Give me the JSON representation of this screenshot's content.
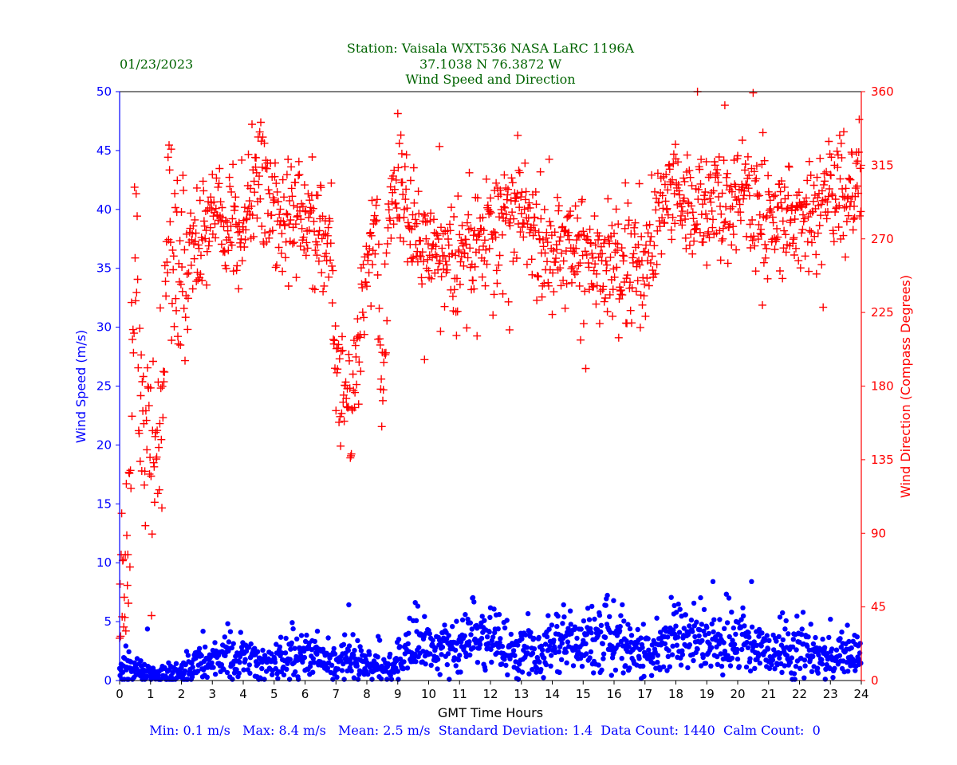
{
  "chart_data": {
    "type": "scatter",
    "title_lines": [
      "Station:  Vaisala WXT536  NASA LaRC 1196A",
      "37.1038 N 76.3872 W",
      "Wind Speed and Direction"
    ],
    "date": "01/23/2023",
    "xlabel": "GMT Time Hours",
    "ylabel_left": "Wind Speed (m/s)",
    "ylabel_right": "Wind Direction (Compass Degrees)",
    "xlim": [
      0,
      24
    ],
    "ylim_left": [
      0,
      50
    ],
    "ylim_right": [
      0,
      360
    ],
    "x_ticks": [
      "0",
      "1",
      "2",
      "3",
      "4",
      "5",
      "6",
      "7",
      "8",
      "9",
      "10",
      "11",
      "12",
      "13",
      "14",
      "15",
      "16",
      "17",
      "18",
      "19",
      "20",
      "21",
      "22",
      "23",
      "24"
    ],
    "y_left_ticks": [
      "0",
      "5",
      "10",
      "15",
      "20",
      "25",
      "30",
      "35",
      "40",
      "45",
      "50"
    ],
    "y_right_ticks": [
      "0",
      "45",
      "90",
      "135",
      "180",
      "225",
      "270",
      "315",
      "360"
    ],
    "stats": "Min: 0.1 m/s   Max: 8.4 m/s   Mean: 2.5 m/s  Standard Deviation: 1.4  Data Count: 1440  Calm Count:  0",
    "sample_interval_minutes": 1,
    "series": [
      {
        "name": "Wind Speed (m/s)",
        "axis": "left",
        "marker": "circle",
        "color": "#0000ff",
        "hourly_profile": [
          [
            0,
            1.0
          ],
          [
            0.5,
            0.9
          ],
          [
            1,
            0.5
          ],
          [
            1.5,
            0.5
          ],
          [
            2,
            0.5
          ],
          [
            2.5,
            1.4
          ],
          [
            3,
            1.8
          ],
          [
            3.5,
            2.0
          ],
          [
            4,
            2.4
          ],
          [
            4.5,
            1.2
          ],
          [
            5,
            1.4
          ],
          [
            5.5,
            2.2
          ],
          [
            6,
            2.0
          ],
          [
            6.5,
            1.8
          ],
          [
            7,
            1.6
          ],
          [
            7.5,
            2.2
          ],
          [
            8,
            1.5
          ],
          [
            8.5,
            0.8
          ],
          [
            9,
            1.4
          ],
          [
            9.5,
            3.2
          ],
          [
            10,
            3.0
          ],
          [
            10.5,
            2.8
          ],
          [
            11,
            3.0
          ],
          [
            11.5,
            3.8
          ],
          [
            12,
            3.6
          ],
          [
            12.5,
            2.8
          ],
          [
            13,
            2.8
          ],
          [
            13.5,
            2.6
          ],
          [
            14,
            2.8
          ],
          [
            14.5,
            3.2
          ],
          [
            15,
            3.2
          ],
          [
            15.5,
            3.6
          ],
          [
            16,
            3.6
          ],
          [
            16.5,
            3.0
          ],
          [
            17,
            2.4
          ],
          [
            17.5,
            2.8
          ],
          [
            18,
            3.6
          ],
          [
            18.5,
            3.2
          ],
          [
            19,
            3.4
          ],
          [
            19.5,
            3.0
          ],
          [
            20,
            3.2
          ],
          [
            20.5,
            3.4
          ],
          [
            21,
            3.0
          ],
          [
            21.5,
            2.6
          ],
          [
            22,
            2.6
          ],
          [
            22.5,
            2.0
          ],
          [
            23,
            2.0
          ],
          [
            23.5,
            2.2
          ],
          [
            24,
            2.0
          ]
        ],
        "min": 0.1,
        "max": 8.4,
        "max_at_hour": 19.2
      },
      {
        "name": "Wind Direction (deg)",
        "axis": "right",
        "marker": "plus",
        "color": "#ff0000",
        "hourly_profile": [
          [
            0,
            60
          ],
          [
            0.3,
            70
          ],
          [
            0.5,
            280
          ],
          [
            0.7,
            150
          ],
          [
            1,
            110
          ],
          [
            1.3,
            150
          ],
          [
            1.6,
            290
          ],
          [
            2,
            250
          ],
          [
            2.5,
            260
          ],
          [
            3,
            285
          ],
          [
            3.5,
            270
          ],
          [
            4,
            275
          ],
          [
            4.5,
            310
          ],
          [
            5,
            280
          ],
          [
            5.5,
            285
          ],
          [
            6,
            280
          ],
          [
            6.5,
            275
          ],
          [
            6.8,
            270
          ],
          [
            7,
            195
          ],
          [
            7.5,
            160
          ],
          [
            7.8,
            220
          ],
          [
            8,
            260
          ],
          [
            8.3,
            270
          ],
          [
            8.5,
            170
          ],
          [
            8.7,
            280
          ],
          [
            9,
            300
          ],
          [
            9.5,
            270
          ],
          [
            10,
            265
          ],
          [
            10.5,
            255
          ],
          [
            11,
            255
          ],
          [
            11.5,
            265
          ],
          [
            12,
            270
          ],
          [
            12.5,
            285
          ],
          [
            13,
            290
          ],
          [
            13.5,
            265
          ],
          [
            14,
            265
          ],
          [
            14.5,
            260
          ],
          [
            15,
            260
          ],
          [
            15.5,
            255
          ],
          [
            16,
            255
          ],
          [
            16.5,
            250
          ],
          [
            17,
            250
          ],
          [
            17.5,
            285
          ],
          [
            18,
            300
          ],
          [
            18.5,
            290
          ],
          [
            19,
            285
          ],
          [
            19.5,
            290
          ],
          [
            20,
            295
          ],
          [
            20.5,
            290
          ],
          [
            21,
            285
          ],
          [
            21.5,
            290
          ],
          [
            22,
            285
          ],
          [
            22.5,
            285
          ],
          [
            23,
            295
          ],
          [
            23.5,
            300
          ],
          [
            24,
            300
          ]
        ]
      }
    ]
  },
  "colors": {
    "speed": "#0000ff",
    "direction": "#ff0000",
    "title": "#006400",
    "stats": "#0000ff"
  }
}
